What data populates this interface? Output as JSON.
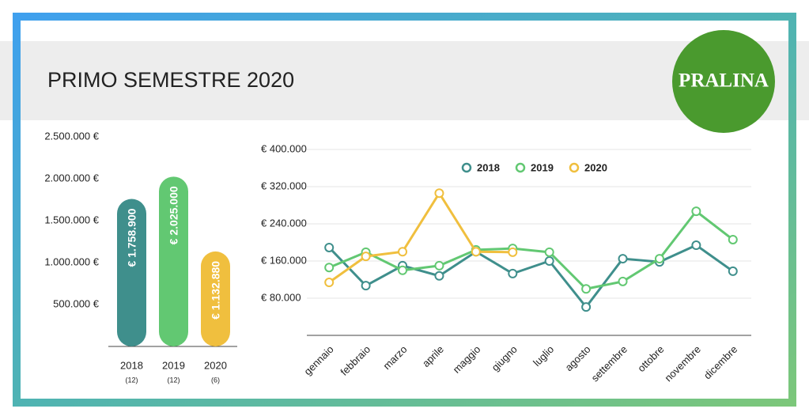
{
  "title": "PRIMO SEMESTRE 2020",
  "logo": "PRALINA",
  "chart_data": [
    {
      "type": "bar",
      "categories": [
        "2018",
        "2019",
        "2020"
      ],
      "category_notes": [
        "(12)",
        "(12)",
        "(6)"
      ],
      "values": [
        1758900,
        2025000,
        1132880
      ],
      "value_labels": [
        "€ 1.758.900",
        "€ 2.025.000",
        "€ 1.132.880"
      ],
      "colors": [
        "#3f8f8c",
        "#62c872",
        "#f0bf3e"
      ],
      "ylim": [
        0,
        2500000
      ],
      "yticks": [
        {
          "value": 500000,
          "label": "500.000 €"
        },
        {
          "value": 1000000,
          "label": "1.000.000 €"
        },
        {
          "value": 1500000,
          "label": "1.500.000 €"
        },
        {
          "value": 2000000,
          "label": "2.000.000 €"
        },
        {
          "value": 2500000,
          "label": "2.500.000 €"
        }
      ]
    },
    {
      "type": "line",
      "categories": [
        "gennaio",
        "febbraio",
        "marzo",
        "aprile",
        "maggio",
        "giugno",
        "luglio",
        "agosto",
        "settembre",
        "ottobre",
        "novembre",
        "dicembre"
      ],
      "series": [
        {
          "name": "2018",
          "color": "#3f8f8c",
          "values": [
            189000,
            107000,
            150000,
            128000,
            180000,
            133000,
            160000,
            61000,
            165000,
            158000,
            194000,
            138000
          ]
        },
        {
          "name": "2019",
          "color": "#62c872",
          "values": [
            146000,
            179000,
            140000,
            150000,
            184000,
            187000,
            179000,
            100000,
            116000,
            165000,
            267000,
            206000
          ]
        },
        {
          "name": "2020",
          "color": "#f0bf3e",
          "values": [
            114000,
            170000,
            180000,
            306000,
            180000,
            179000,
            null,
            null,
            null,
            null,
            null,
            null
          ]
        }
      ],
      "ylim": [
        0,
        400000
      ],
      "yticks": [
        {
          "value": 80000,
          "label": "€ 80.000"
        },
        {
          "value": 160000,
          "label": "€ 160.000"
        },
        {
          "value": 240000,
          "label": "€ 240.000"
        },
        {
          "value": 320000,
          "label": "€ 320.000"
        },
        {
          "value": 400000,
          "label": "€ 400.000"
        }
      ],
      "grid": true,
      "legend": "top"
    }
  ]
}
